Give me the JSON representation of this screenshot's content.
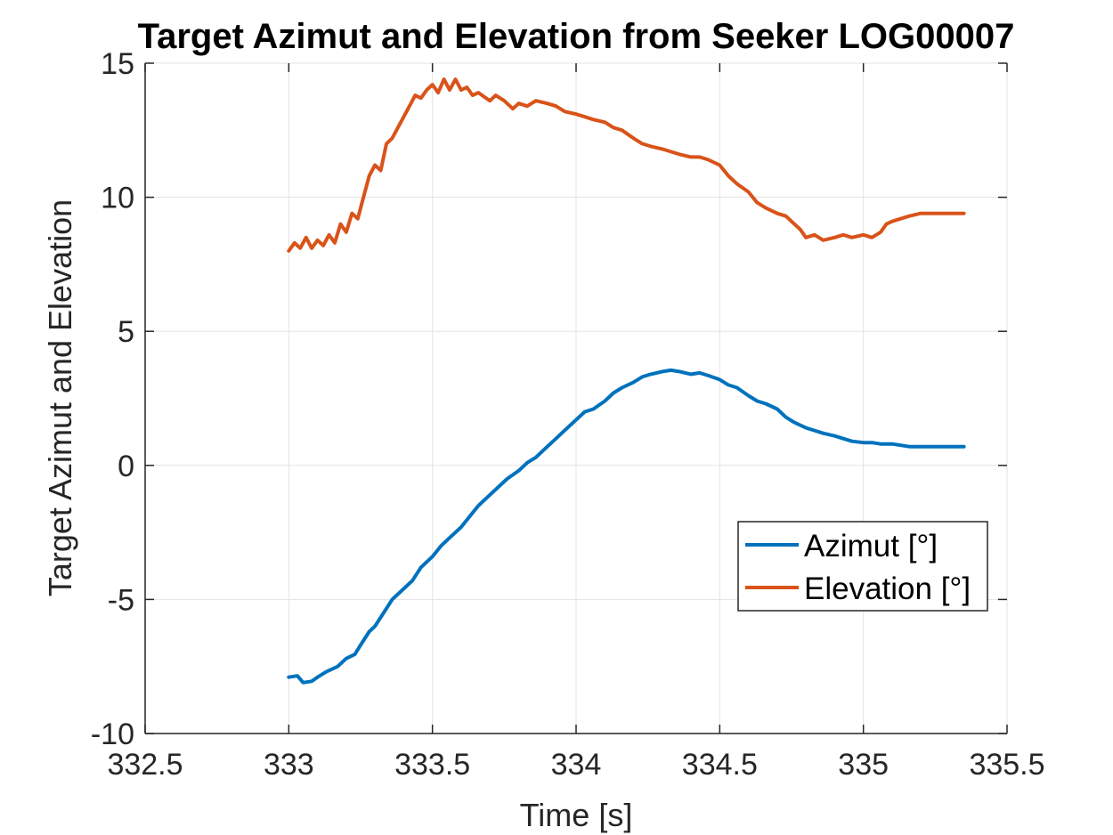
{
  "chart_data": {
    "type": "line",
    "title": "Target Azimut and Elevation from Seeker LOG00007",
    "xlabel": "Time [s]",
    "ylabel": "Target Azimut and Elevation",
    "xlim": [
      332.5,
      335.5
    ],
    "ylim": [
      -10,
      15
    ],
    "xticks": [
      332.5,
      333,
      333.5,
      334,
      334.5,
      335,
      335.5
    ],
    "xtick_labels": [
      "332.5",
      "333",
      "333.5",
      "334",
      "334.5",
      "335",
      "335.5"
    ],
    "yticks": [
      -10,
      -5,
      0,
      5,
      10,
      15
    ],
    "ytick_labels": [
      "-10",
      "-5",
      "0",
      "5",
      "10",
      "15"
    ],
    "grid": true,
    "legend_position": "lower-right",
    "series": [
      {
        "name": "Azimut [°]",
        "color": "#0072BD",
        "points": [
          [
            333.0,
            -7.9
          ],
          [
            333.03,
            -7.85
          ],
          [
            333.05,
            -8.1
          ],
          [
            333.08,
            -8.05
          ],
          [
            333.1,
            -7.9
          ],
          [
            333.13,
            -7.7
          ],
          [
            333.17,
            -7.5
          ],
          [
            333.2,
            -7.2
          ],
          [
            333.23,
            -7.05
          ],
          [
            333.25,
            -6.7
          ],
          [
            333.28,
            -6.2
          ],
          [
            333.3,
            -6.0
          ],
          [
            333.33,
            -5.5
          ],
          [
            333.36,
            -5.0
          ],
          [
            333.4,
            -4.6
          ],
          [
            333.43,
            -4.3
          ],
          [
            333.46,
            -3.8
          ],
          [
            333.5,
            -3.4
          ],
          [
            333.53,
            -3.0
          ],
          [
            333.56,
            -2.7
          ],
          [
            333.6,
            -2.3
          ],
          [
            333.63,
            -1.9
          ],
          [
            333.66,
            -1.5
          ],
          [
            333.7,
            -1.1
          ],
          [
            333.73,
            -0.8
          ],
          [
            333.76,
            -0.5
          ],
          [
            333.8,
            -0.2
          ],
          [
            333.83,
            0.1
          ],
          [
            333.86,
            0.3
          ],
          [
            333.9,
            0.7
          ],
          [
            333.93,
            1.0
          ],
          [
            333.96,
            1.3
          ],
          [
            334.0,
            1.7
          ],
          [
            334.03,
            2.0
          ],
          [
            334.06,
            2.1
          ],
          [
            334.1,
            2.4
          ],
          [
            334.13,
            2.7
          ],
          [
            334.16,
            2.9
          ],
          [
            334.2,
            3.1
          ],
          [
            334.23,
            3.3
          ],
          [
            334.26,
            3.4
          ],
          [
            334.3,
            3.5
          ],
          [
            334.33,
            3.55
          ],
          [
            334.36,
            3.5
          ],
          [
            334.4,
            3.4
          ],
          [
            334.43,
            3.45
          ],
          [
            334.46,
            3.35
          ],
          [
            334.5,
            3.2
          ],
          [
            334.53,
            3.0
          ],
          [
            334.56,
            2.9
          ],
          [
            334.6,
            2.6
          ],
          [
            334.63,
            2.4
          ],
          [
            334.66,
            2.3
          ],
          [
            334.7,
            2.1
          ],
          [
            334.73,
            1.8
          ],
          [
            334.76,
            1.6
          ],
          [
            334.8,
            1.4
          ],
          [
            334.83,
            1.3
          ],
          [
            334.86,
            1.2
          ],
          [
            334.9,
            1.1
          ],
          [
            334.93,
            1.0
          ],
          [
            334.96,
            0.9
          ],
          [
            335.0,
            0.85
          ],
          [
            335.03,
            0.85
          ],
          [
            335.06,
            0.8
          ],
          [
            335.1,
            0.8
          ],
          [
            335.13,
            0.75
          ],
          [
            335.16,
            0.7
          ],
          [
            335.2,
            0.7
          ],
          [
            335.25,
            0.7
          ],
          [
            335.3,
            0.7
          ],
          [
            335.35,
            0.7
          ]
        ]
      },
      {
        "name": "Elevation [°]",
        "color": "#D95319",
        "points": [
          [
            333.0,
            8.0
          ],
          [
            333.02,
            8.3
          ],
          [
            333.04,
            8.1
          ],
          [
            333.06,
            8.5
          ],
          [
            333.08,
            8.1
          ],
          [
            333.1,
            8.4
          ],
          [
            333.12,
            8.2
          ],
          [
            333.14,
            8.6
          ],
          [
            333.16,
            8.3
          ],
          [
            333.18,
            9.0
          ],
          [
            333.2,
            8.7
          ],
          [
            333.22,
            9.4
          ],
          [
            333.24,
            9.2
          ],
          [
            333.26,
            10.0
          ],
          [
            333.28,
            10.8
          ],
          [
            333.3,
            11.2
          ],
          [
            333.32,
            11.0
          ],
          [
            333.34,
            12.0
          ],
          [
            333.36,
            12.2
          ],
          [
            333.38,
            12.6
          ],
          [
            333.4,
            13.0
          ],
          [
            333.42,
            13.4
          ],
          [
            333.44,
            13.8
          ],
          [
            333.46,
            13.7
          ],
          [
            333.48,
            14.0
          ],
          [
            333.5,
            14.2
          ],
          [
            333.52,
            13.9
          ],
          [
            333.54,
            14.4
          ],
          [
            333.56,
            14.0
          ],
          [
            333.58,
            14.4
          ],
          [
            333.6,
            14.0
          ],
          [
            333.62,
            14.1
          ],
          [
            333.64,
            13.8
          ],
          [
            333.66,
            13.9
          ],
          [
            333.7,
            13.6
          ],
          [
            333.72,
            13.8
          ],
          [
            333.75,
            13.6
          ],
          [
            333.78,
            13.3
          ],
          [
            333.8,
            13.5
          ],
          [
            333.83,
            13.4
          ],
          [
            333.86,
            13.6
          ],
          [
            333.9,
            13.5
          ],
          [
            333.93,
            13.4
          ],
          [
            333.96,
            13.2
          ],
          [
            334.0,
            13.1
          ],
          [
            334.03,
            13.0
          ],
          [
            334.06,
            12.9
          ],
          [
            334.1,
            12.8
          ],
          [
            334.13,
            12.6
          ],
          [
            334.16,
            12.5
          ],
          [
            334.2,
            12.2
          ],
          [
            334.23,
            12.0
          ],
          [
            334.26,
            11.9
          ],
          [
            334.3,
            11.8
          ],
          [
            334.33,
            11.7
          ],
          [
            334.36,
            11.6
          ],
          [
            334.4,
            11.5
          ],
          [
            334.43,
            11.5
          ],
          [
            334.46,
            11.4
          ],
          [
            334.5,
            11.2
          ],
          [
            334.53,
            10.8
          ],
          [
            334.56,
            10.5
          ],
          [
            334.6,
            10.2
          ],
          [
            334.63,
            9.8
          ],
          [
            334.66,
            9.6
          ],
          [
            334.7,
            9.4
          ],
          [
            334.73,
            9.3
          ],
          [
            334.76,
            9.0
          ],
          [
            334.78,
            8.8
          ],
          [
            334.8,
            8.5
          ],
          [
            334.83,
            8.6
          ],
          [
            334.86,
            8.4
          ],
          [
            334.9,
            8.5
          ],
          [
            334.93,
            8.6
          ],
          [
            334.96,
            8.5
          ],
          [
            335.0,
            8.6
          ],
          [
            335.03,
            8.5
          ],
          [
            335.06,
            8.7
          ],
          [
            335.08,
            9.0
          ],
          [
            335.1,
            9.1
          ],
          [
            335.13,
            9.2
          ],
          [
            335.16,
            9.3
          ],
          [
            335.2,
            9.4
          ],
          [
            335.25,
            9.4
          ],
          [
            335.3,
            9.4
          ],
          [
            335.35,
            9.4
          ]
        ]
      }
    ]
  }
}
